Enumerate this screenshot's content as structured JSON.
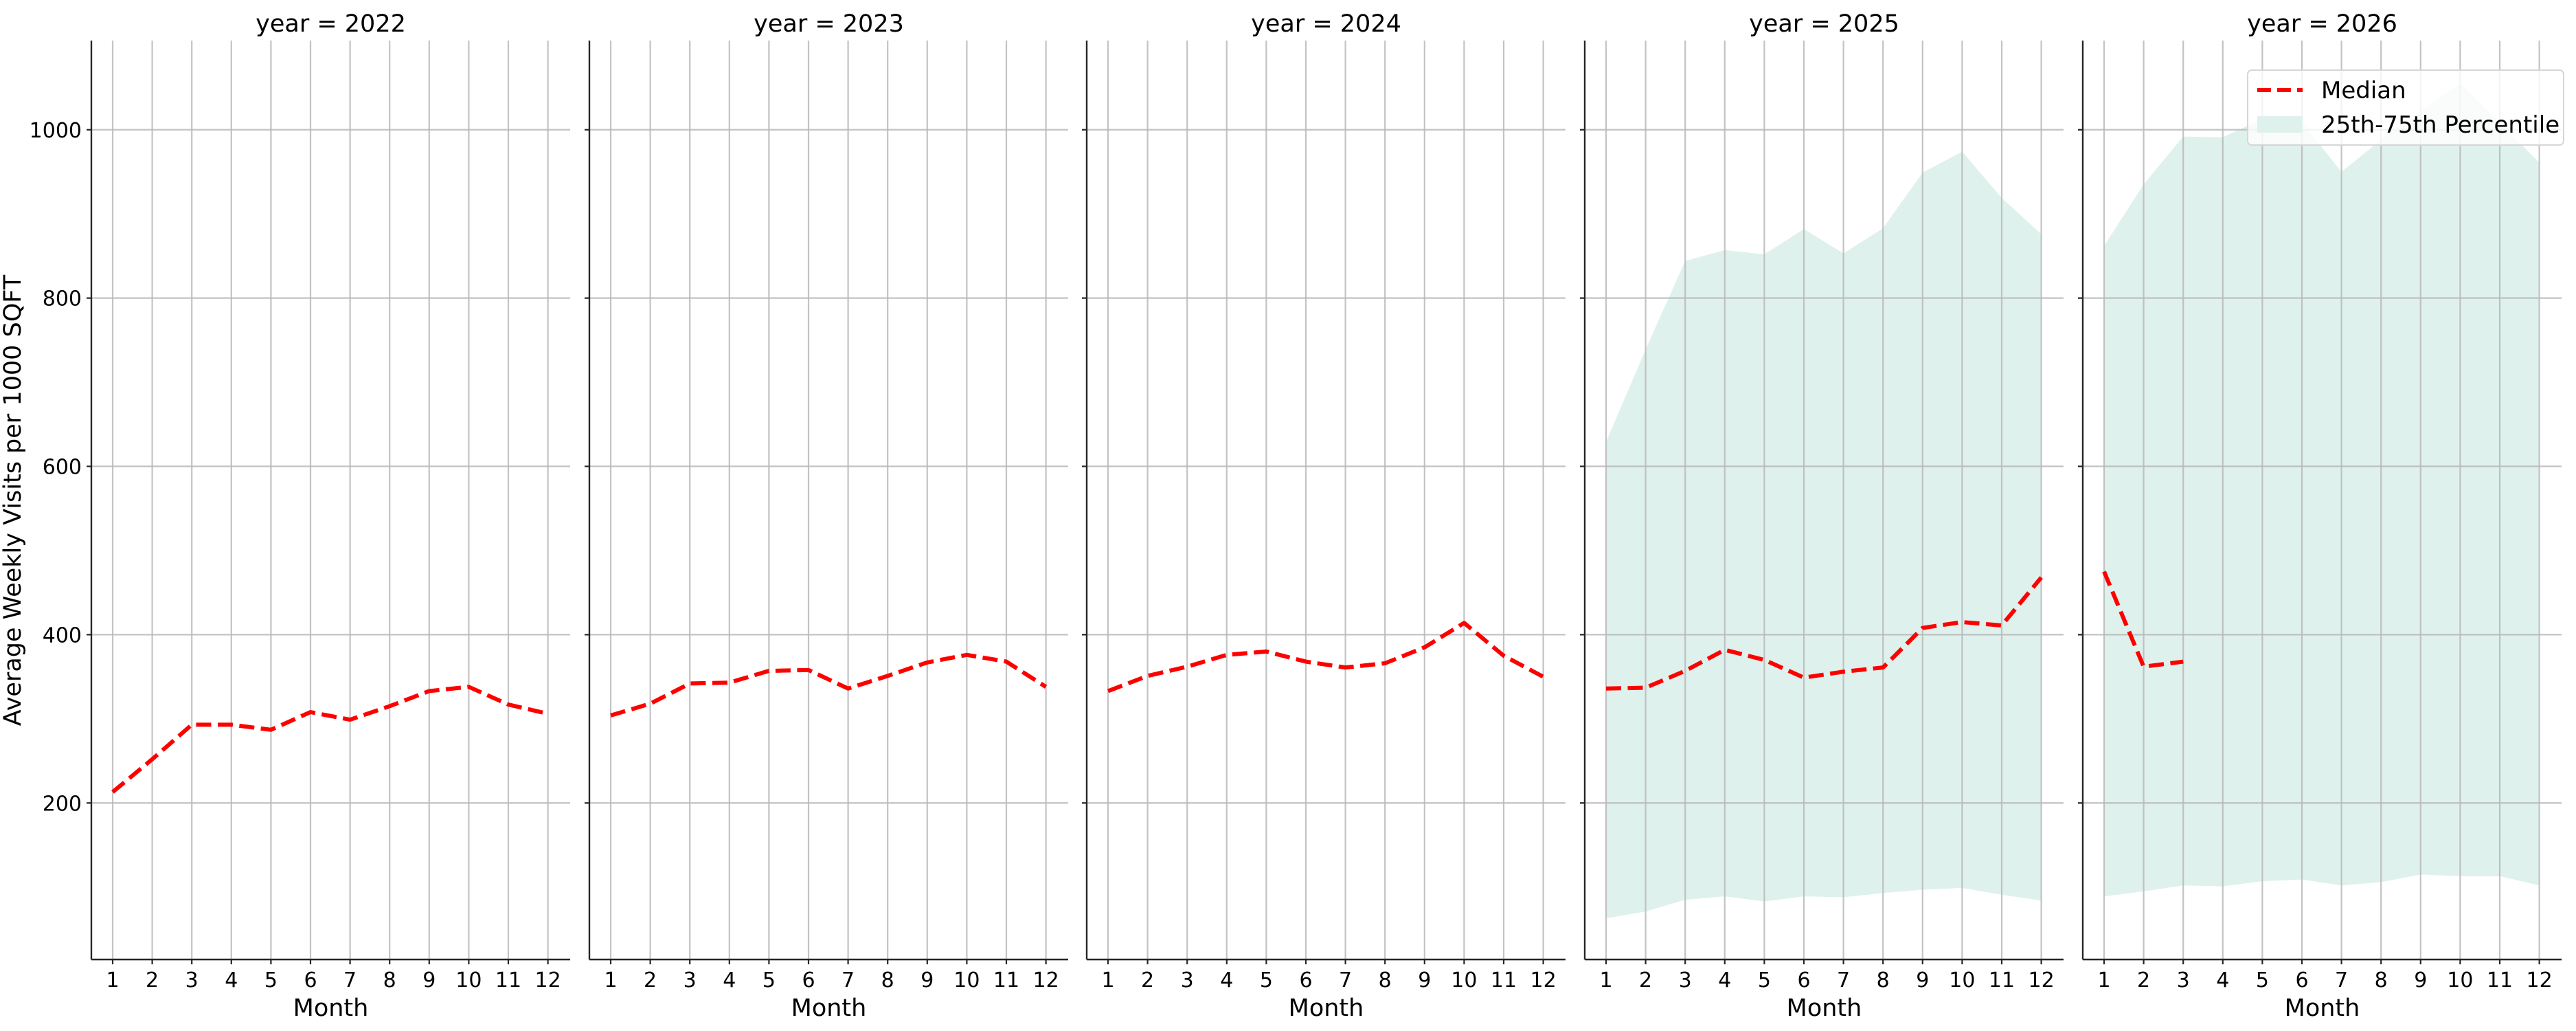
{
  "figure": {
    "ylabel": "Average Weekly Visits per 1000 SQFT",
    "xlabel": "Month",
    "colors": {
      "median": "#ff0000",
      "band": "#dff1ec",
      "grid": "#b9b9b9",
      "axis": "#262626",
      "legend_border": "#d6d6d6"
    },
    "legend": {
      "items": [
        {
          "label": "Median",
          "type": "dashed-line",
          "color": "#ff0000"
        },
        {
          "label": "25th-75th Percentile",
          "type": "patch",
          "color": "#dff1ec"
        }
      ]
    }
  },
  "chart_data": {
    "type": "line",
    "title": "",
    "xlabel": "Month",
    "ylabel": "Average Weekly Visits per 1000 SQFT",
    "ylim": [
      14,
      1106
    ],
    "yticks": [
      200,
      400,
      600,
      800,
      1000
    ],
    "xticks": [
      1,
      2,
      3,
      4,
      5,
      6,
      7,
      8,
      9,
      10,
      11,
      12
    ],
    "grid": true,
    "legend_position": "upper right (last panel)",
    "facets": [
      {
        "title": "year = 2022",
        "x": [
          1,
          2,
          3,
          4,
          5,
          6,
          7,
          8,
          9,
          10,
          11,
          12
        ],
        "series": [
          {
            "name": "Median",
            "values": [
              213,
              252,
              293,
              293,
              287,
              308,
              299,
              315,
              333,
              338,
              317,
              306
            ]
          }
        ]
      },
      {
        "title": "year = 2023",
        "x": [
          1,
          2,
          3,
          4,
          5,
          6,
          7,
          8,
          9,
          10,
          11,
          12
        ],
        "series": [
          {
            "name": "Median",
            "values": [
              304,
              318,
              342,
              343,
              357,
              358,
              336,
              351,
              367,
              376,
              368,
              338
            ]
          }
        ]
      },
      {
        "title": "year = 2024",
        "x": [
          1,
          2,
          3,
          4,
          5,
          6,
          7,
          8,
          9,
          10,
          11,
          12
        ],
        "series": [
          {
            "name": "Median",
            "values": [
              333,
              351,
              362,
              376,
              380,
              368,
              361,
              366,
              385,
              414,
              375,
              350
            ]
          }
        ]
      },
      {
        "title": "year = 2025",
        "x": [
          1,
          2,
          3,
          4,
          5,
          6,
          7,
          8,
          9,
          10,
          11,
          12
        ],
        "series": [
          {
            "name": "Median",
            "values": [
              336,
              337,
              357,
              382,
              370,
              349,
              356,
              361,
              408,
              415,
              411,
              468
            ]
          },
          {
            "name": "25th Percentile",
            "values": [
              63,
              71,
              85,
              89,
              83,
              89,
              88,
              93,
              97,
              99,
              91,
              84
            ]
          },
          {
            "name": "75th Percentile",
            "values": [
              629,
              739,
              844,
              857,
              852,
              882,
              853,
              883,
              949,
              974,
              919,
              876
            ]
          }
        ]
      },
      {
        "title": "year = 2026",
        "x": [
          1,
          2,
          3,
          4,
          5,
          6,
          7,
          8,
          9,
          10,
          11,
          12
        ],
        "series": [
          {
            "name": "Median",
            "x": [
              1,
              2,
              3
            ],
            "values": [
              475,
              362,
              368
            ]
          },
          {
            "name": "25th Percentile",
            "values": [
              89,
              95,
              102,
              101,
              107,
              109,
              102,
              106,
              115,
              113,
              113,
              102
            ]
          },
          {
            "name": "75th Percentile",
            "values": [
              862,
              935,
              992,
              991,
              1013,
              1009,
              950,
              988,
              1022,
              1055,
              1008,
              961
            ]
          }
        ]
      }
    ]
  }
}
